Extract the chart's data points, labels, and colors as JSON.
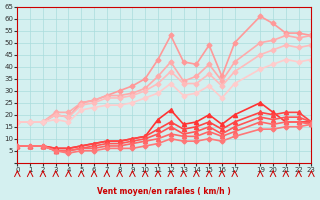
{
  "background_color": "#d4f0f0",
  "grid_color": "#aadddd",
  "xlabel": "Vent moyen/en rafales ( km/h )",
  "ylabel": "",
  "xlim": [
    0,
    23
  ],
  "ylim": [
    0,
    65
  ],
  "yticks": [
    0,
    5,
    10,
    15,
    20,
    25,
    30,
    35,
    40,
    45,
    50,
    55,
    60,
    65
  ],
  "xticks": [
    0,
    1,
    2,
    3,
    4,
    5,
    6,
    7,
    8,
    9,
    10,
    11,
    12,
    13,
    14,
    15,
    16,
    17,
    19,
    20,
    21,
    22,
    23
  ],
  "series_light": [
    {
      "x": [
        0,
        1,
        2,
        3,
        4,
        5,
        6,
        7,
        8,
        9,
        10,
        11,
        12,
        13,
        14,
        15,
        16,
        17,
        19,
        20,
        21,
        22,
        23
      ],
      "y": [
        17,
        17,
        17,
        20,
        19,
        25,
        26,
        28,
        30,
        32,
        35,
        43,
        53,
        42,
        41,
        49,
        36,
        50,
        61,
        58,
        54,
        54,
        53
      ],
      "color": "#ff9999",
      "lw": 1.2,
      "marker": "D",
      "ms": 2.5
    },
    {
      "x": [
        0,
        1,
        2,
        3,
        4,
        5,
        6,
        7,
        8,
        9,
        10,
        11,
        12,
        13,
        14,
        15,
        16,
        17,
        19,
        20,
        21,
        22,
        23
      ],
      "y": [
        17,
        17,
        17,
        21,
        21,
        25,
        26,
        28,
        28,
        29,
        31,
        36,
        42,
        34,
        36,
        41,
        34,
        42,
        50,
        51,
        53,
        52,
        53
      ],
      "color": "#ffaaaa",
      "lw": 1.2,
      "marker": "D",
      "ms": 2.5
    },
    {
      "x": [
        0,
        1,
        2,
        3,
        4,
        5,
        6,
        7,
        8,
        9,
        10,
        11,
        12,
        13,
        14,
        15,
        16,
        17,
        19,
        20,
        21,
        22,
        23
      ],
      "y": [
        17,
        17,
        17,
        20,
        19,
        24,
        25,
        27,
        27,
        28,
        30,
        33,
        38,
        33,
        33,
        37,
        32,
        38,
        45,
        47,
        49,
        48,
        49
      ],
      "color": "#ffbbbb",
      "lw": 1.2,
      "marker": "D",
      "ms": 2.5
    },
    {
      "x": [
        0,
        1,
        2,
        3,
        4,
        5,
        6,
        7,
        8,
        9,
        10,
        11,
        12,
        13,
        14,
        15,
        16,
        17,
        19,
        20,
        21,
        22,
        23
      ],
      "y": [
        17,
        17,
        17,
        18,
        17,
        22,
        23,
        24,
        24,
        25,
        27,
        29,
        33,
        28,
        29,
        32,
        27,
        33,
        39,
        41,
        43,
        42,
        43
      ],
      "color": "#ffcccc",
      "lw": 1.2,
      "marker": "D",
      "ms": 2.5
    }
  ],
  "series_dark": [
    {
      "x": [
        0,
        1,
        2,
        3,
        4,
        5,
        6,
        7,
        8,
        9,
        10,
        11,
        12,
        13,
        14,
        15,
        16,
        17,
        19,
        20,
        21,
        22,
        23
      ],
      "y": [
        7,
        7,
        7,
        6,
        6,
        7,
        8,
        9,
        9,
        10,
        11,
        18,
        22,
        16,
        17,
        20,
        16,
        20,
        25,
        21,
        17,
        17,
        17
      ],
      "color": "#ff3333",
      "lw": 1.2,
      "marker": "^",
      "ms": 3.0
    },
    {
      "x": [
        0,
        1,
        2,
        3,
        4,
        5,
        6,
        7,
        8,
        9,
        10,
        11,
        12,
        13,
        14,
        15,
        16,
        17,
        19,
        20,
        21,
        22,
        23
      ],
      "y": [
        7,
        7,
        7,
        6,
        6,
        7,
        8,
        9,
        9,
        10,
        11,
        14,
        17,
        14,
        15,
        17,
        14,
        17,
        21,
        20,
        21,
        21,
        17
      ],
      "color": "#ff4444",
      "lw": 1.2,
      "marker": "^",
      "ms": 3.0
    },
    {
      "x": [
        0,
        1,
        2,
        3,
        4,
        5,
        6,
        7,
        8,
        9,
        10,
        11,
        12,
        13,
        14,
        15,
        16,
        17,
        19,
        20,
        21,
        22,
        23
      ],
      "y": [
        7,
        7,
        7,
        5,
        5,
        6,
        7,
        8,
        8,
        9,
        10,
        12,
        15,
        12,
        13,
        15,
        12,
        15,
        19,
        18,
        19,
        19,
        17
      ],
      "color": "#ff5555",
      "lw": 1.2,
      "marker": "^",
      "ms": 3.0
    },
    {
      "x": [
        0,
        1,
        2,
        3,
        4,
        5,
        6,
        7,
        8,
        9,
        10,
        11,
        12,
        13,
        14,
        15,
        16,
        17,
        19,
        20,
        21,
        22,
        23
      ],
      "y": [
        7,
        7,
        7,
        5,
        5,
        6,
        6,
        7,
        7,
        8,
        9,
        10,
        12,
        11,
        11,
        13,
        11,
        13,
        17,
        16,
        17,
        17,
        16
      ],
      "color": "#ff6666",
      "lw": 1.2,
      "marker": "^",
      "ms": 3.0
    },
    {
      "x": [
        0,
        1,
        2,
        3,
        4,
        5,
        6,
        7,
        8,
        9,
        10,
        11,
        12,
        13,
        14,
        15,
        16,
        17,
        19,
        20,
        21,
        22,
        23
      ],
      "y": [
        7,
        7,
        7,
        5,
        4,
        5,
        5,
        6,
        6,
        6,
        7,
        8,
        10,
        9,
        9,
        10,
        9,
        11,
        14,
        14,
        15,
        15,
        16
      ],
      "color": "#ff7777",
      "lw": 1.2,
      "marker": "D",
      "ms": 2.5
    }
  ],
  "wind_arrows": [
    0,
    1,
    2,
    3,
    4,
    5,
    6,
    7,
    8,
    9,
    10,
    11,
    12,
    13,
    14,
    15,
    16,
    17,
    19,
    20,
    21,
    22,
    23
  ]
}
